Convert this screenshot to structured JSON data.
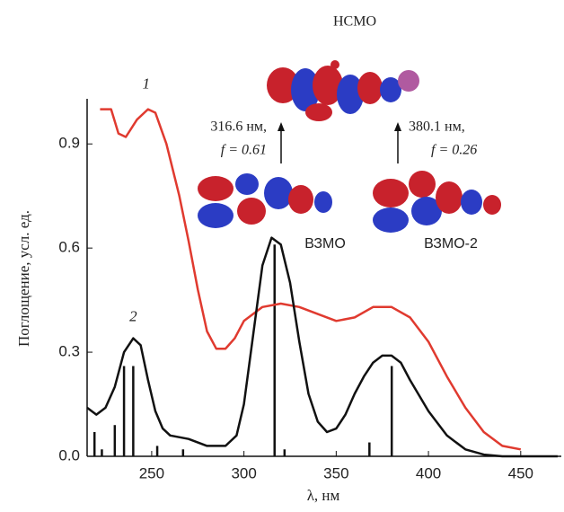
{
  "chart_data": {
    "type": "line",
    "xlabel": "λ, нм",
    "ylabel": "Поглощение, усл. ед.",
    "xlim": [
      215,
      472
    ],
    "ylim": [
      0,
      1.03
    ],
    "xticks": [
      250,
      300,
      350,
      400,
      450
    ],
    "yticks": [
      {
        "value": 0,
        "label": "0.0"
      },
      0.3,
      0.6,
      0.9
    ],
    "series": [
      {
        "name": "1",
        "color": "#e03a2f",
        "x": [
          222,
          228,
          232,
          236,
          242,
          248,
          252,
          258,
          265,
          270,
          275,
          280,
          285,
          290,
          295,
          300,
          310,
          320,
          330,
          340,
          350,
          360,
          370,
          380,
          390,
          400,
          410,
          420,
          430,
          440,
          450
        ],
        "values": [
          1.0,
          1.0,
          0.93,
          0.92,
          0.97,
          1.0,
          0.99,
          0.9,
          0.75,
          0.62,
          0.48,
          0.36,
          0.31,
          0.31,
          0.34,
          0.39,
          0.43,
          0.44,
          0.43,
          0.41,
          0.39,
          0.4,
          0.43,
          0.43,
          0.4,
          0.33,
          0.23,
          0.14,
          0.07,
          0.03,
          0.02
        ]
      },
      {
        "name": "2",
        "color": "#111111",
        "x": [
          215,
          220,
          225,
          230,
          235,
          240,
          244,
          248,
          252,
          256,
          260,
          270,
          280,
          290,
          296,
          300,
          305,
          310,
          315,
          320,
          325,
          330,
          335,
          340,
          345,
          350,
          355,
          360,
          365,
          370,
          375,
          380,
          385,
          390,
          400,
          410,
          420,
          430,
          440,
          470
        ],
        "values": [
          0.14,
          0.12,
          0.14,
          0.2,
          0.3,
          0.34,
          0.32,
          0.22,
          0.13,
          0.08,
          0.06,
          0.05,
          0.03,
          0.03,
          0.06,
          0.15,
          0.35,
          0.55,
          0.63,
          0.61,
          0.5,
          0.33,
          0.18,
          0.1,
          0.07,
          0.08,
          0.12,
          0.18,
          0.23,
          0.27,
          0.29,
          0.29,
          0.27,
          0.22,
          0.13,
          0.06,
          0.02,
          0.005,
          0.0,
          0.0
        ]
      }
    ],
    "sticks": {
      "color": "#111111",
      "x": [
        219,
        223,
        230,
        235,
        240,
        253,
        267,
        316.6,
        322,
        368,
        380.1
      ],
      "values": [
        0.07,
        0.02,
        0.09,
        0.26,
        0.26,
        0.03,
        0.02,
        0.61,
        0.02,
        0.04,
        0.26
      ]
    },
    "annotations": [
      "НСМО",
      "316.6 нм,",
      "f = 0.61",
      "380.1 нм,",
      "f = 0.26",
      "ВЗМО",
      "ВЗМО-2"
    ]
  }
}
